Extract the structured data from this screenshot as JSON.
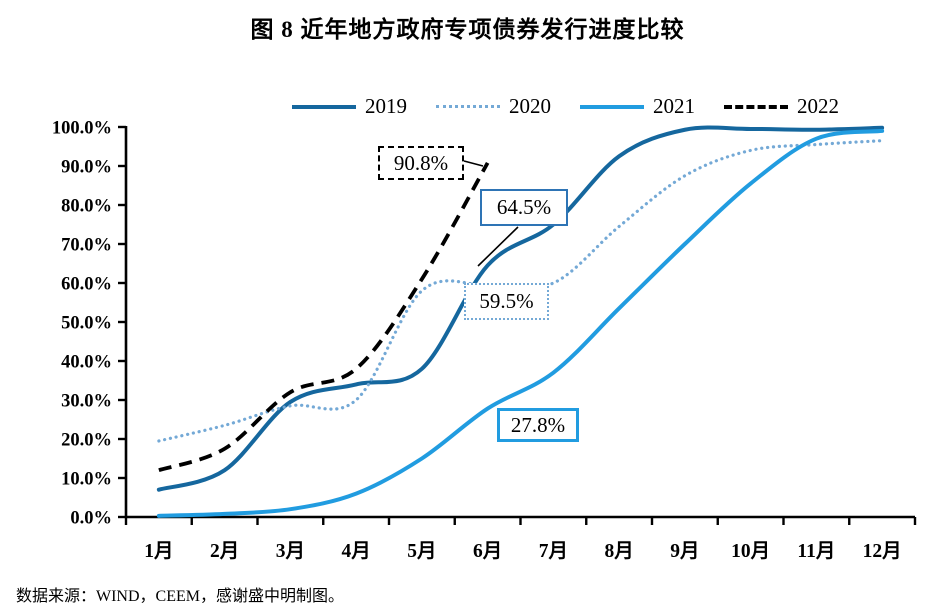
{
  "title": "图 8 近年地方政府专项债券发行进度比较",
  "source_note": "数据来源：WIND，CEEM，感谢盛中明制图。",
  "legend": {
    "items": [
      {
        "label": "2019",
        "color": "#15679e",
        "style": "solid"
      },
      {
        "label": "2020",
        "color": "#74a9d6",
        "style": "dotted"
      },
      {
        "label": "2021",
        "color": "#219ce0",
        "style": "solid"
      },
      {
        "label": "2022",
        "color": "#000000",
        "style": "dashed"
      }
    ]
  },
  "chart_data": {
    "type": "line",
    "x": [
      "1月",
      "2月",
      "3月",
      "4月",
      "5月",
      "6月",
      "7月",
      "8月",
      "9月",
      "10月",
      "11月",
      "12月"
    ],
    "yticks": [
      "0.0%",
      "10.0%",
      "20.0%",
      "30.0%",
      "40.0%",
      "50.0%",
      "60.0%",
      "70.0%",
      "80.0%",
      "90.0%",
      "100.0%"
    ],
    "ylim": [
      0,
      100
    ],
    "grid": false,
    "legend_position": "top",
    "series": [
      {
        "name": "2019",
        "color": "#15679e",
        "line": "solid",
        "values": [
          7,
          12,
          29.5,
          34,
          38,
          64.5,
          75,
          92.5,
          99.3,
          99.5,
          99.3,
          99.8
        ]
      },
      {
        "name": "2020",
        "color": "#74a9d6",
        "line": "dotted",
        "values": [
          19.5,
          23.5,
          28.5,
          30,
          58,
          59.5,
          60,
          74.5,
          87.5,
          94,
          95.5,
          96.5
        ]
      },
      {
        "name": "2021",
        "color": "#219ce0",
        "line": "solid",
        "values": [
          0.3,
          0.8,
          2,
          6,
          15,
          27.8,
          37,
          53.5,
          70,
          85.5,
          97,
          99
        ]
      },
      {
        "name": "2022",
        "color": "#000000",
        "line": "dashed",
        "values": [
          12,
          17.5,
          32,
          38,
          61,
          90.8
        ]
      }
    ],
    "annotations": [
      {
        "text": "90.8%",
        "series": "2022",
        "month_index": 5,
        "value": 90.8
      },
      {
        "text": "64.5%",
        "series": "2019",
        "month_index": 5,
        "value": 64.5
      },
      {
        "text": "59.5%",
        "series": "2020",
        "month_index": 5,
        "value": 59.5
      },
      {
        "text": "27.8%",
        "series": "2021",
        "month_index": 5,
        "value": 27.8
      }
    ]
  }
}
